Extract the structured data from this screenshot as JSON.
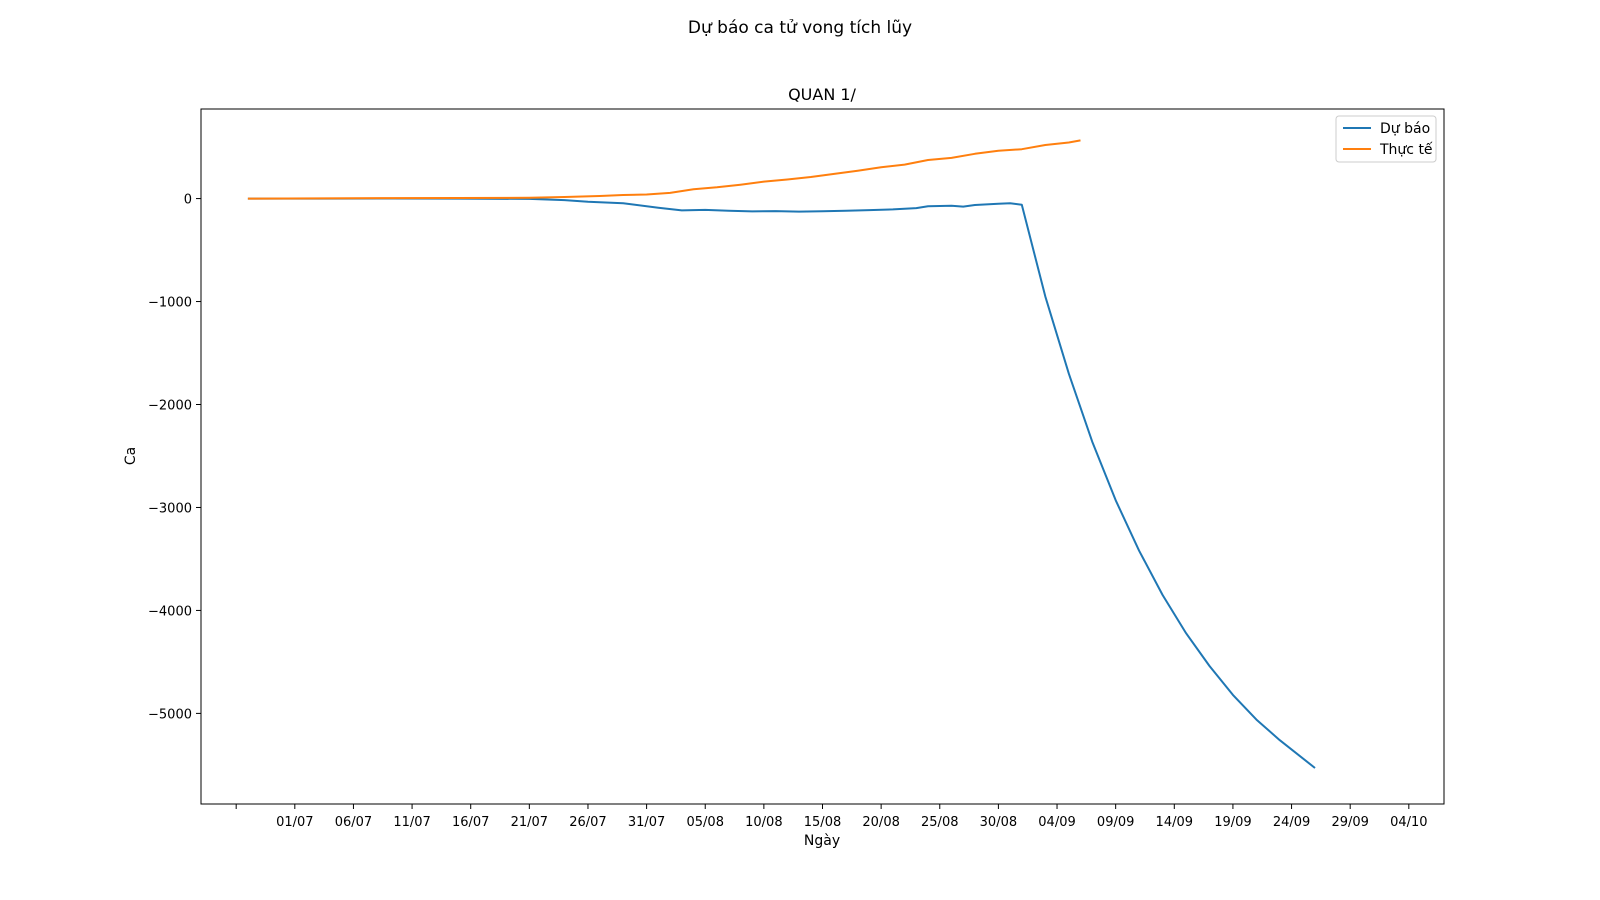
{
  "figure": {
    "suptitle": "Dự báo ca tử vong tích lũy"
  },
  "chart_data": {
    "type": "line",
    "title": "QUAN 1/",
    "xlabel": "Ngày",
    "ylabel": "Ca",
    "x_type": "date",
    "year": 2021,
    "xlim": [
      "2021-06-23",
      "2021-10-07"
    ],
    "ylim": [
      -5880,
      870
    ],
    "yticks": [
      0,
      -1000,
      -2000,
      -3000,
      -4000,
      -5000
    ],
    "ytick_labels": [
      "0",
      "−1000",
      "−2000",
      "−3000",
      "−4000",
      "−5000"
    ],
    "xticks": [
      "2021-06-26",
      "2021-07-01",
      "2021-07-06",
      "2021-07-11",
      "2021-07-16",
      "2021-07-21",
      "2021-07-26",
      "2021-07-31",
      "2021-08-05",
      "2021-08-10",
      "2021-08-15",
      "2021-08-20",
      "2021-08-25",
      "2021-08-30",
      "2021-09-04",
      "2021-09-09",
      "2021-09-14",
      "2021-09-19",
      "2021-09-24",
      "2021-09-29",
      "2021-10-04"
    ],
    "xtick_labels": [
      "",
      "01/07",
      "06/07",
      "11/07",
      "16/07",
      "21/07",
      "26/07",
      "31/07",
      "05/08",
      "10/08",
      "15/08",
      "20/08",
      "25/08",
      "30/08",
      "04/09",
      "09/09",
      "14/09",
      "19/09",
      "24/09",
      "29/09",
      "04/10"
    ],
    "legend": "top-right",
    "grid": false,
    "series": [
      {
        "name": "Dự báo",
        "color": "#1f77b4",
        "points": [
          [
            "2021-06-27",
            0
          ],
          [
            "2021-07-03",
            0
          ],
          [
            "2021-07-09",
            1
          ],
          [
            "2021-07-15",
            0
          ],
          [
            "2021-07-21",
            -3
          ],
          [
            "2021-07-24",
            -15
          ],
          [
            "2021-07-26",
            -30
          ],
          [
            "2021-07-29",
            -45
          ],
          [
            "2021-08-01",
            -90
          ],
          [
            "2021-08-03",
            -115
          ],
          [
            "2021-08-05",
            -110
          ],
          [
            "2021-08-07",
            -118
          ],
          [
            "2021-08-09",
            -125
          ],
          [
            "2021-08-11",
            -122
          ],
          [
            "2021-08-13",
            -126
          ],
          [
            "2021-08-15",
            -123
          ],
          [
            "2021-08-17",
            -118
          ],
          [
            "2021-08-19",
            -112
          ],
          [
            "2021-08-21",
            -105
          ],
          [
            "2021-08-23",
            -92
          ],
          [
            "2021-08-24",
            -75
          ],
          [
            "2021-08-26",
            -70
          ],
          [
            "2021-08-27",
            -78
          ],
          [
            "2021-08-28",
            -62
          ],
          [
            "2021-08-30",
            -50
          ],
          [
            "2021-08-31",
            -45
          ],
          [
            "2021-09-01",
            -60
          ],
          [
            "2021-09-03",
            -950
          ],
          [
            "2021-09-05",
            -1700
          ],
          [
            "2021-09-07",
            -2360
          ],
          [
            "2021-09-09",
            -2930
          ],
          [
            "2021-09-11",
            -3420
          ],
          [
            "2021-09-13",
            -3850
          ],
          [
            "2021-09-15",
            -4220
          ],
          [
            "2021-09-17",
            -4540
          ],
          [
            "2021-09-19",
            -4820
          ],
          [
            "2021-09-21",
            -5060
          ],
          [
            "2021-09-23",
            -5260
          ],
          [
            "2021-09-26",
            -5530
          ]
        ]
      },
      {
        "name": "Thực tế",
        "color": "#ff7f0e",
        "points": [
          [
            "2021-06-27",
            0
          ],
          [
            "2021-07-03",
            2
          ],
          [
            "2021-07-09",
            5
          ],
          [
            "2021-07-15",
            6
          ],
          [
            "2021-07-21",
            8
          ],
          [
            "2021-07-24",
            15
          ],
          [
            "2021-07-27",
            25
          ],
          [
            "2021-07-29",
            35
          ],
          [
            "2021-07-31",
            40
          ],
          [
            "2021-08-02",
            55
          ],
          [
            "2021-08-04",
            90
          ],
          [
            "2021-08-06",
            110
          ],
          [
            "2021-08-08",
            135
          ],
          [
            "2021-08-10",
            165
          ],
          [
            "2021-08-12",
            185
          ],
          [
            "2021-08-14",
            210
          ],
          [
            "2021-08-16",
            240
          ],
          [
            "2021-08-18",
            270
          ],
          [
            "2021-08-20",
            305
          ],
          [
            "2021-08-22",
            330
          ],
          [
            "2021-08-24",
            375
          ],
          [
            "2021-08-26",
            395
          ],
          [
            "2021-08-28",
            435
          ],
          [
            "2021-08-30",
            465
          ],
          [
            "2021-09-01",
            480
          ],
          [
            "2021-09-03",
            520
          ],
          [
            "2021-09-05",
            545
          ],
          [
            "2021-09-06",
            565
          ]
        ]
      }
    ]
  }
}
